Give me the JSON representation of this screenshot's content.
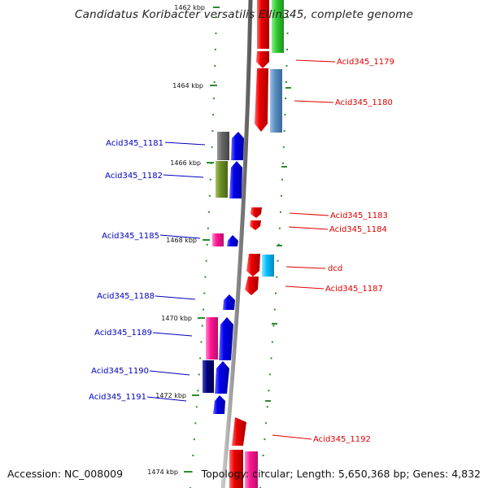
{
  "title": "Candidatus Koribacter versatilis Ellin345, complete genome",
  "footer": {
    "accession": "Accession: NC_008009",
    "topology": "Topology: circular; Length: 5,650,368 bp; Genes: 4,832"
  },
  "colors": {
    "forward_label": "#dd0000",
    "reverse_label": "#0000bb",
    "backbone": "#8f8f8f",
    "tick": "#2e8b2e"
  },
  "axis_labels": [
    "1462 kbp",
    "1464 kbp",
    "1466 kbp",
    "1468 kbp",
    "1470 kbp",
    "1472 kbp",
    "1474 kbp"
  ],
  "gene_labels": {
    "right": [
      "Acid345_1179",
      "Acid345_1180",
      "Acid345_1183",
      "Acid345_1184",
      "dcd",
      "Acid345_1187",
      "Acid345_1192"
    ],
    "left": [
      "Acid345_1181",
      "Acid345_1182",
      "Acid345_1185",
      "Acid345_1188",
      "Acid345_1189",
      "Acid345_1190",
      "Acid345_1191"
    ]
  }
}
